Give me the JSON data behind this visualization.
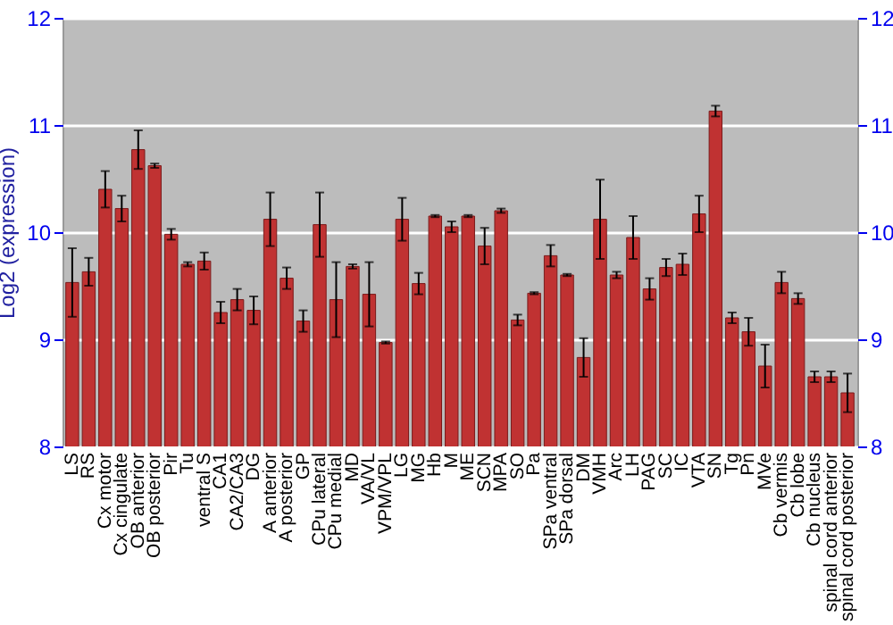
{
  "chart_data": {
    "type": "bar",
    "ylabel": "Log2 (expression)",
    "categories": [
      "LS",
      "RS",
      "Cx motor",
      "Cx cingulate",
      "OB anterior",
      "OB posterior",
      "Pir",
      "Tu",
      "ventral S",
      "CA1",
      "CA2/CA3",
      "DG",
      "A anterior",
      "A posterior",
      "GP",
      "CPu lateral",
      "CPu medial",
      "MD",
      "VA/VL",
      "VPM/VPL",
      "LG",
      "MG",
      "Hb",
      "M",
      "ME",
      "SCN",
      "MPA",
      "SO",
      "Pa",
      "SPa ventral",
      "SPa dorsal",
      "DM",
      "VMH",
      "Arc",
      "LH",
      "PAG",
      "SC",
      "IC",
      "VTA",
      "SN",
      "Tg",
      "Pn",
      "MVe",
      "Cb vermis",
      "Cb lobe",
      "Cb nucleus",
      "spinal cord anterior",
      "spinal cord posterior"
    ],
    "values": [
      9.53,
      9.63,
      10.4,
      10.22,
      10.77,
      10.62,
      9.98,
      9.7,
      9.73,
      9.25,
      9.37,
      9.27,
      10.12,
      9.57,
      9.17,
      10.07,
      9.37,
      9.68,
      9.42,
      8.97,
      10.12,
      9.52,
      10.15,
      10.05,
      10.15,
      9.87,
      10.2,
      9.18,
      9.43,
      9.78,
      9.6,
      8.83,
      10.12,
      9.6,
      9.95,
      9.47,
      9.67,
      9.7,
      10.17,
      11.13,
      9.2,
      9.07,
      8.75,
      9.53,
      9.38,
      8.65,
      8.65,
      8.5
    ],
    "errors": [
      0.32,
      0.13,
      0.17,
      0.12,
      0.18,
      0.02,
      0.05,
      0.02,
      0.08,
      0.1,
      0.1,
      0.13,
      0.25,
      0.1,
      0.1,
      0.3,
      0.35,
      0.02,
      0.3,
      0.01,
      0.2,
      0.1,
      0.01,
      0.05,
      0.01,
      0.17,
      0.02,
      0.05,
      0.01,
      0.1,
      0.01,
      0.18,
      0.37,
      0.03,
      0.2,
      0.1,
      0.08,
      0.1,
      0.17,
      0.05,
      0.05,
      0.13,
      0.2,
      0.1,
      0.05,
      0.05,
      0.05,
      0.18
    ],
    "color": "#c03232",
    "ylim": [
      8,
      12
    ],
    "yticks": [
      8,
      9,
      10,
      11,
      12
    ],
    "y2lim": [
      8,
      12
    ],
    "y2ticks": [
      8,
      9,
      10,
      11,
      12
    ],
    "grid": "y"
  }
}
